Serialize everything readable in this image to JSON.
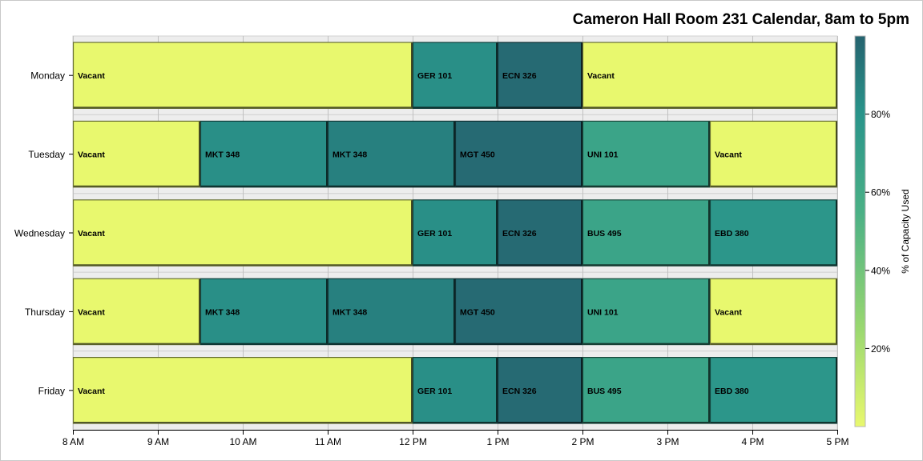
{
  "chart_data": {
    "type": "bar",
    "subtype": "horizontal-stacked-schedule",
    "title": "Cameron Hall Room 231 Calendar, 8am to 5pm",
    "xlim": [
      8,
      17
    ],
    "x_ticks": [
      {
        "value": 8,
        "label": "8 AM"
      },
      {
        "value": 9,
        "label": "9 AM"
      },
      {
        "value": 10,
        "label": "10 AM"
      },
      {
        "value": 11,
        "label": "11 AM"
      },
      {
        "value": 12,
        "label": "12 PM"
      },
      {
        "value": 13,
        "label": "1 PM"
      },
      {
        "value": 14,
        "label": "2 PM"
      },
      {
        "value": 15,
        "label": "3 PM"
      },
      {
        "value": 16,
        "label": "4 PM"
      },
      {
        "value": 17,
        "label": "5 PM"
      }
    ],
    "days": [
      "Monday",
      "Tuesday",
      "Wednesday",
      "Thursday",
      "Friday"
    ],
    "rows": [
      {
        "day": "Monday",
        "segments": [
          {
            "label": "Vacant",
            "start": 8,
            "end": 12,
            "capacity": 0
          },
          {
            "label": "GER 101",
            "start": 12,
            "end": 13,
            "capacity": 82
          },
          {
            "label": "ECN 326",
            "start": 13,
            "end": 14,
            "capacity": 97
          },
          {
            "label": "Vacant",
            "start": 14,
            "end": 17,
            "capacity": 0
          }
        ]
      },
      {
        "day": "Tuesday",
        "segments": [
          {
            "label": "Vacant",
            "start": 8,
            "end": 9.5,
            "capacity": 0
          },
          {
            "label": "MKT 348",
            "start": 9.5,
            "end": 11,
            "capacity": 82
          },
          {
            "label": "MKT 348",
            "start": 11,
            "end": 12.5,
            "capacity": 88
          },
          {
            "label": "MGT 450",
            "start": 12.5,
            "end": 14,
            "capacity": 97
          },
          {
            "label": "UNI 101",
            "start": 14,
            "end": 15.5,
            "capacity": 66
          },
          {
            "label": "Vacant",
            "start": 15.5,
            "end": 17,
            "capacity": 0
          }
        ]
      },
      {
        "day": "Wednesday",
        "segments": [
          {
            "label": "Vacant",
            "start": 8,
            "end": 12,
            "capacity": 0
          },
          {
            "label": "GER 101",
            "start": 12,
            "end": 13,
            "capacity": 82
          },
          {
            "label": "ECN 326",
            "start": 13,
            "end": 14,
            "capacity": 97
          },
          {
            "label": "BUS 495",
            "start": 14,
            "end": 15.5,
            "capacity": 66
          },
          {
            "label": "EBD 380",
            "start": 15.5,
            "end": 17,
            "capacity": 78
          }
        ]
      },
      {
        "day": "Thursday",
        "segments": [
          {
            "label": "Vacant",
            "start": 8,
            "end": 9.5,
            "capacity": 0
          },
          {
            "label": "MKT 348",
            "start": 9.5,
            "end": 11,
            "capacity": 82
          },
          {
            "label": "MKT 348",
            "start": 11,
            "end": 12.5,
            "capacity": 88
          },
          {
            "label": "MGT 450",
            "start": 12.5,
            "end": 14,
            "capacity": 97
          },
          {
            "label": "UNI 101",
            "start": 14,
            "end": 15.5,
            "capacity": 66
          },
          {
            "label": "Vacant",
            "start": 15.5,
            "end": 17,
            "capacity": 0
          }
        ]
      },
      {
        "day": "Friday",
        "segments": [
          {
            "label": "Vacant",
            "start": 8,
            "end": 12,
            "capacity": 0
          },
          {
            "label": "GER 101",
            "start": 12,
            "end": 13,
            "capacity": 82
          },
          {
            "label": "ECN 326",
            "start": 13,
            "end": 14,
            "capacity": 97
          },
          {
            "label": "BUS 495",
            "start": 14,
            "end": 15.5,
            "capacity": 66
          },
          {
            "label": "EBD 380",
            "start": 15.5,
            "end": 17,
            "capacity": 78
          }
        ]
      }
    ],
    "color_axis": {
      "label": "% of Capacity Used",
      "range": [
        0,
        100
      ],
      "ticks": [
        {
          "value": 20,
          "label": "20%"
        },
        {
          "value": 40,
          "label": "40%"
        },
        {
          "value": 60,
          "label": "60%"
        },
        {
          "value": 80,
          "label": "80%"
        }
      ],
      "gradient_stops": [
        {
          "value": 0,
          "color": "#e8f86e"
        },
        {
          "value": 25,
          "color": "#9ad870"
        },
        {
          "value": 55,
          "color": "#4ab086"
        },
        {
          "value": 80,
          "color": "#29948a"
        },
        {
          "value": 100,
          "color": "#25636f"
        }
      ],
      "placement": "right"
    },
    "colors": {
      "background": "#ffffff",
      "band": "#ededed",
      "grid": "#c0c0c0",
      "axis": "#000000"
    },
    "grid": true
  }
}
